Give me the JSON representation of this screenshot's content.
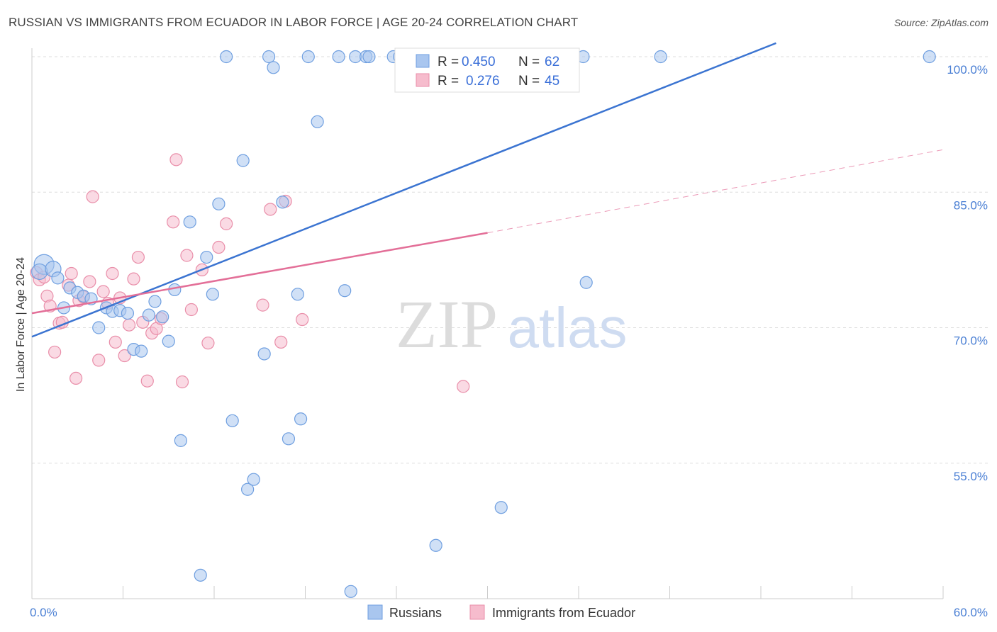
{
  "header": {
    "title": "RUSSIAN VS IMMIGRANTS FROM ECUADOR IN LABOR FORCE | AGE 20-24 CORRELATION CHART",
    "source": "Source: ZipAtlas.com"
  },
  "watermark": {
    "zip": "ZIP",
    "atlas": "atlas"
  },
  "colors": {
    "blue_fill": "#a9c6ef",
    "blue_stroke": "#6f9fe0",
    "blue_line": "#3b74d1",
    "pink_fill": "#f6bccd",
    "pink_stroke": "#e98ea9",
    "pink_line": "#e36f98",
    "tick_text": "#4a7fd4",
    "grid": "#dddddd"
  },
  "chart_data": {
    "type": "scatter",
    "ylabel": "In Labor Force | Age 20-24",
    "xlim": [
      0,
      60
    ],
    "ylim": [
      40,
      101.5
    ],
    "x_tick_labels": [
      {
        "value": 0,
        "label": "0.0%"
      },
      {
        "value": 60,
        "label": "60.0%"
      }
    ],
    "y_tick_labels": [
      {
        "value": 55,
        "label": "55.0%"
      },
      {
        "value": 70,
        "label": "70.0%"
      },
      {
        "value": 85,
        "label": "85.0%"
      },
      {
        "value": 100,
        "label": "100.0%"
      }
    ],
    "legend": {
      "rows": [
        {
          "series": "Russians",
          "r_label": "R =",
          "r_value": "0.450",
          "n_label": "N =",
          "n_value": "62"
        },
        {
          "series": "Immigrants from Ecuador",
          "r_label": "R =",
          "r_value": "0.276",
          "n_label": "N =",
          "n_value": "45"
        }
      ]
    },
    "series": [
      {
        "name": "Russians",
        "color": "blue",
        "trend": {
          "x0": 0,
          "y0": 69.0,
          "x1": 49.0,
          "y1": 101.5,
          "dashed_to": null
        },
        "points": [
          [
            0.8,
            77.0
          ],
          [
            0.5,
            76.2
          ],
          [
            1.4,
            76.5
          ],
          [
            1.7,
            75.5
          ],
          [
            2.1,
            72.2
          ],
          [
            2.5,
            74.4
          ],
          [
            3.0,
            73.9
          ],
          [
            3.4,
            73.5
          ],
          [
            3.9,
            73.2
          ],
          [
            4.4,
            70.0
          ],
          [
            4.9,
            72.2
          ],
          [
            5.3,
            71.8
          ],
          [
            5.8,
            71.9
          ],
          [
            6.3,
            71.6
          ],
          [
            6.7,
            67.6
          ],
          [
            7.2,
            67.4
          ],
          [
            7.7,
            71.4
          ],
          [
            8.1,
            72.9
          ],
          [
            8.6,
            71.2
          ],
          [
            9.0,
            68.5
          ],
          [
            9.4,
            74.2
          ],
          [
            9.8,
            57.5
          ],
          [
            10.4,
            81.7
          ],
          [
            11.1,
            42.6
          ],
          [
            11.5,
            77.8
          ],
          [
            11.9,
            73.7
          ],
          [
            12.3,
            83.7
          ],
          [
            12.8,
            100.0
          ],
          [
            13.2,
            59.7
          ],
          [
            13.9,
            88.5
          ],
          [
            14.2,
            52.1
          ],
          [
            14.6,
            53.2
          ],
          [
            15.3,
            67.1
          ],
          [
            15.6,
            100.0
          ],
          [
            15.9,
            98.8
          ],
          [
            16.5,
            83.9
          ],
          [
            16.9,
            57.7
          ],
          [
            17.5,
            73.7
          ],
          [
            17.7,
            59.9
          ],
          [
            18.2,
            100.0
          ],
          [
            18.8,
            92.8
          ],
          [
            20.2,
            100.0
          ],
          [
            20.6,
            74.1
          ],
          [
            21.0,
            40.8
          ],
          [
            21.3,
            100.0
          ],
          [
            22.0,
            100.0
          ],
          [
            22.2,
            100.0
          ],
          [
            23.8,
            100.0
          ],
          [
            24.2,
            100.0
          ],
          [
            25.5,
            100.0
          ],
          [
            26.0,
            100.0
          ],
          [
            26.6,
            45.9
          ],
          [
            28.0,
            100.0
          ],
          [
            29.2,
            100.0
          ],
          [
            30.9,
            50.1
          ],
          [
            33.9,
            100.0
          ],
          [
            35.3,
            100.0
          ],
          [
            36.3,
            100.0
          ],
          [
            36.5,
            75.0
          ],
          [
            41.4,
            100.0
          ],
          [
            59.1,
            100.0
          ],
          [
            30.0,
            100.0
          ]
        ]
      },
      {
        "name": "Immigrants from Ecuador",
        "color": "pink",
        "trend": {
          "x0": 0,
          "y0": 71.6,
          "x1": 30.0,
          "y1": 80.5,
          "dashed_to": {
            "x": 60.0,
            "y": 89.7
          }
        },
        "points": [
          [
            0.3,
            76.1
          ],
          [
            0.5,
            75.3
          ],
          [
            0.8,
            75.6
          ],
          [
            1.0,
            73.5
          ],
          [
            1.2,
            72.4
          ],
          [
            1.5,
            67.3
          ],
          [
            1.8,
            70.5
          ],
          [
            2.0,
            70.6
          ],
          [
            2.4,
            74.7
          ],
          [
            2.6,
            76.0
          ],
          [
            2.9,
            64.4
          ],
          [
            3.1,
            73.0
          ],
          [
            3.4,
            73.4
          ],
          [
            3.8,
            75.1
          ],
          [
            4.0,
            84.5
          ],
          [
            4.4,
            66.4
          ],
          [
            4.7,
            74.0
          ],
          [
            5.0,
            72.7
          ],
          [
            5.3,
            76.0
          ],
          [
            5.5,
            68.4
          ],
          [
            5.8,
            73.3
          ],
          [
            6.1,
            66.9
          ],
          [
            6.4,
            70.3
          ],
          [
            6.7,
            75.4
          ],
          [
            7.0,
            77.8
          ],
          [
            7.3,
            70.6
          ],
          [
            7.6,
            64.1
          ],
          [
            7.9,
            69.4
          ],
          [
            8.2,
            69.9
          ],
          [
            8.5,
            71.0
          ],
          [
            9.3,
            81.7
          ],
          [
            9.5,
            88.6
          ],
          [
            9.9,
            64.0
          ],
          [
            10.2,
            78.0
          ],
          [
            10.5,
            72.0
          ],
          [
            11.2,
            76.4
          ],
          [
            11.6,
            68.3
          ],
          [
            12.3,
            78.9
          ],
          [
            12.8,
            81.5
          ],
          [
            15.2,
            72.5
          ],
          [
            15.7,
            83.1
          ],
          [
            16.4,
            68.4
          ],
          [
            16.7,
            84.0
          ],
          [
            17.8,
            70.9
          ],
          [
            28.4,
            63.5
          ]
        ]
      }
    ]
  },
  "bottom_legend": [
    "Russians",
    "Immigrants from Ecuador"
  ]
}
